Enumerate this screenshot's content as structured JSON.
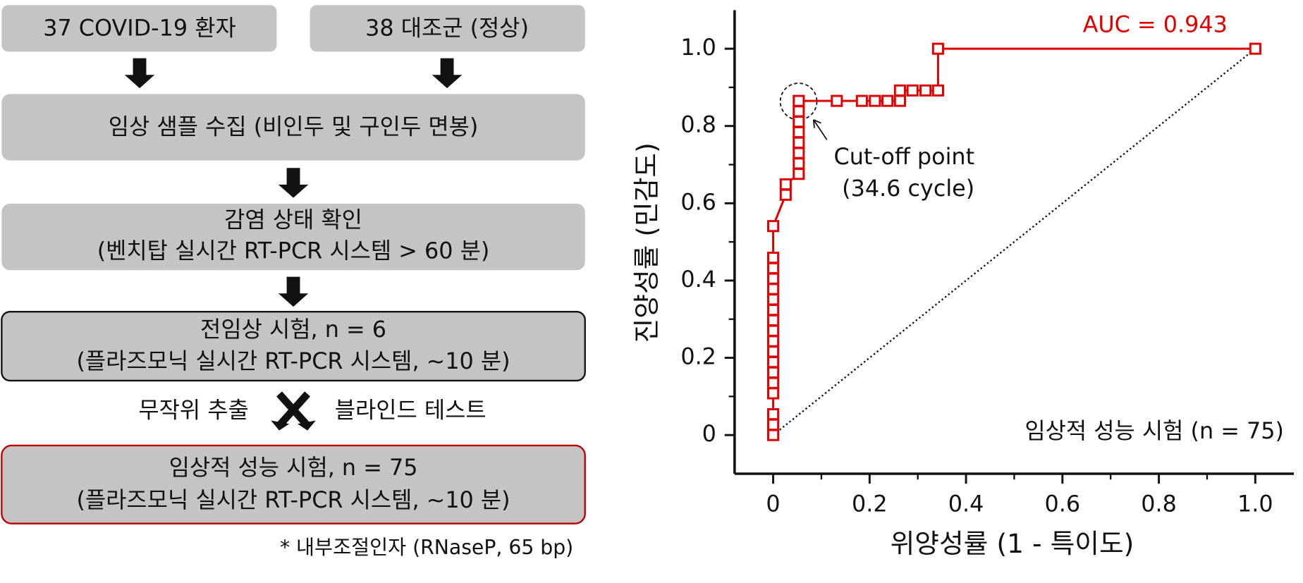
{
  "flowchart": {
    "box1": "37 COVID-19 환자",
    "box2": "38 대조군 (정상)",
    "box3": "임상 샘플 수집 (비인두 및 구인두 면봉)",
    "box4": [
      "감염 상태 확인",
      "(벤치탑 실시간 RT-PCR 시스템 > 60 분)"
    ],
    "box5": [
      "전임상 시험, n = 6",
      "(플라즈모닉 실시간 RT-PCR 시스템, ~10 분)"
    ],
    "split_left": "무작위 추출",
    "split_right": "블라인드 테스트",
    "box6": [
      "임상적 성능 시험, n = 75",
      "(플라즈모닉 실시간 RT-PCR 시스템, ~10 분)"
    ],
    "footnote": "* 내부조절인자 (RNaseP, 65 bp)"
  },
  "chart_data": {
    "type": "line",
    "x_label": "위양성률 (1 - 특이도)",
    "y_label": "진양성률 (민감도)",
    "annotations": {
      "auc": "AUC = 0.943",
      "cutoff": "Cut-off point",
      "cutoff_value": "(34.6 cycle)",
      "test": "임상적 성능 시험 (n = 75)"
    },
    "x": [
      0,
      0,
      0,
      0,
      0,
      0,
      0,
      0,
      0,
      0,
      0,
      0,
      0,
      0,
      0,
      0,
      0,
      0,
      0.026,
      0.026,
      0.053,
      0.053,
      0.053,
      0.053,
      0.053,
      0.053,
      0.053,
      0.053,
      0.132,
      0.184,
      0.211,
      0.237,
      0.263,
      0.263,
      0.289,
      0.316,
      0.342,
      0.342,
      1.0
    ],
    "values": [
      0,
      0.027,
      0.054,
      0.108,
      0.135,
      0.162,
      0.189,
      0.216,
      0.243,
      0.27,
      0.297,
      0.324,
      0.351,
      0.378,
      0.405,
      0.432,
      0.459,
      0.541,
      0.622,
      0.649,
      0.676,
      0.703,
      0.73,
      0.757,
      0.784,
      0.811,
      0.838,
      0.865,
      0.865,
      0.865,
      0.865,
      0.865,
      0.865,
      0.892,
      0.892,
      0.892,
      0.892,
      1.0,
      1.0
    ],
    "color": "#e00000",
    "marker": "square",
    "reference_line": {
      "x": [
        0,
        1
      ],
      "values": [
        0,
        1
      ],
      "color": "#111111"
    },
    "xlim": [
      -0.08,
      1.08
    ],
    "ylim": [
      -0.1,
      1.1
    ],
    "xticks": [
      0,
      0.2,
      0.4,
      0.6,
      0.8,
      {
        "value": 1,
        "label": "1.0"
      }
    ],
    "yticks": [
      0,
      0.2,
      0.4,
      0.6,
      0.8,
      {
        "value": 1,
        "label": "1.0"
      }
    ]
  }
}
